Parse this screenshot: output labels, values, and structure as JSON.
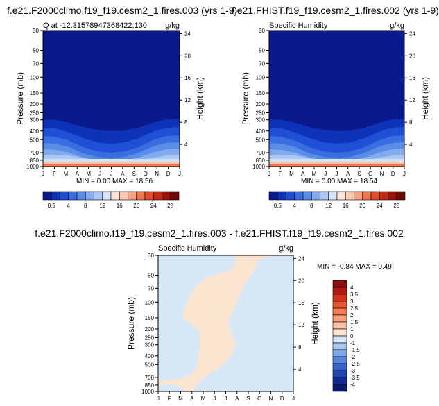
{
  "months": [
    "J",
    "F",
    "M",
    "A",
    "M",
    "J",
    "J",
    "A",
    "S",
    "O",
    "N",
    "D",
    "J"
  ],
  "pressure_ticks": [
    "30",
    "50",
    "70",
    "100",
    "150",
    "200",
    "250",
    "300",
    "400",
    "500",
    "700",
    "850",
    "1000"
  ],
  "pressure_values": [
    30,
    50,
    70,
    100,
    150,
    200,
    250,
    300,
    400,
    500,
    700,
    850,
    1000
  ],
  "height_ticks": [
    "24",
    "20",
    "16",
    "12",
    "8",
    "4"
  ],
  "height_values_km": [
    24,
    20,
    16,
    12,
    8,
    4
  ],
  "ylabel_left": "Pressure (mb)",
  "ylabel_right": "Height (km)",
  "panel1": {
    "title": "f.e21.F2000climo.f19_f19.cesm2_1.fires.003 (yrs 1-9)",
    "subtitle_left": "Q at -12.31578947368422,130",
    "subtitle_right": "g/kg",
    "minmax": "MIN =   0.00 MAX =  18.56"
  },
  "panel2": {
    "title": "f.e21.FHIST.f19_f19.cesm2_1.fires.002 (yrs 1-9)",
    "subtitle_left": "Specific Humidity",
    "subtitle_right": "g/kg",
    "minmax": "MIN =   0.00 MAX =  18.54"
  },
  "panel3": {
    "title": "f.e21.F2000climo.f19_f19.cesm2_1.fires.003 - f.e21.FHIST.f19_f19.cesm2_1.fires.002",
    "subtitle_left": "Specific Humidity",
    "subtitle_right": "g/kg",
    "minmax": "MIN = -0.84 MAX =   0.49"
  },
  "colorbar1": {
    "labels": [
      "0.5",
      "4",
      "8",
      "12",
      "16",
      "20",
      "24",
      "28"
    ],
    "colors": [
      "#0a1a8c",
      "#0f33b8",
      "#1f4fd6",
      "#3a6ee0",
      "#5a8de8",
      "#82aaee",
      "#aac6f3",
      "#d3e3f7",
      "#fbe3d6",
      "#f8c7b0",
      "#f4a184",
      "#ef7756",
      "#e04e2f",
      "#c42a18",
      "#9c1208",
      "#6e0a04"
    ]
  },
  "colorbar3": {
    "labels": [
      "4",
      "3.5",
      "3",
      "2.5",
      "2",
      "1.5",
      "1",
      "0",
      "-1",
      "-1.5",
      "-2",
      "-2.5",
      "-3",
      "-3.5",
      "-4"
    ],
    "colors": [
      "#8a0e0e",
      "#b3170f",
      "#d63118",
      "#ea5530",
      "#f47a52",
      "#f7a07c",
      "#f9c5a6",
      "#fbe5d0",
      "#d6e8f7",
      "#a9c9f0",
      "#7ea8e8",
      "#5686de",
      "#3364d0",
      "#1d44b5",
      "#0f2a94",
      "#0a1a72"
    ]
  },
  "chart_data": [
    {
      "type": "heatmap",
      "title": "f.e21.F2000climo.f19_f19.cesm2_1.fires.003 (yrs 1-9)",
      "variable": "Q at -12.31578947368422,130",
      "units": "g/kg",
      "xlabel": "",
      "ylabel": "Pressure (mb)",
      "ylabel_right": "Height (km)",
      "ylim": [
        1000,
        30
      ],
      "log_scale_y": true,
      "x": [
        "J",
        "F",
        "M",
        "A",
        "M",
        "J",
        "J",
        "A",
        "S",
        "O",
        "N",
        "D",
        "J"
      ],
      "min": 0.0,
      "max": 18.56,
      "moist_layer_top_mb": [
        290,
        290,
        300,
        320,
        380,
        420,
        430,
        420,
        380,
        330,
        300,
        290,
        290
      ]
    },
    {
      "type": "heatmap",
      "title": "f.e21.FHIST.f19_f19.cesm2_1.fires.002 (yrs 1-9)",
      "variable": "Specific Humidity",
      "units": "g/kg",
      "xlabel": "",
      "ylabel": "Pressure (mb)",
      "ylabel_right": "Height (km)",
      "ylim": [
        1000,
        30
      ],
      "log_scale_y": true,
      "x": [
        "J",
        "F",
        "M",
        "A",
        "M",
        "J",
        "J",
        "A",
        "S",
        "O",
        "N",
        "D",
        "J"
      ],
      "min": 0.0,
      "max": 18.54,
      "moist_layer_top_mb": [
        290,
        290,
        300,
        320,
        380,
        420,
        430,
        420,
        380,
        330,
        300,
        290,
        290
      ]
    },
    {
      "type": "heatmap",
      "title": "f.e21.F2000climo.f19_f19.cesm2_1.fires.003 - f.e21.FHIST.f19_f19.cesm2_1.fires.002",
      "variable": "Specific Humidity",
      "units": "g/kg",
      "xlabel": "",
      "ylabel": "Pressure (mb)",
      "ylabel_right": "Height (km)",
      "ylim": [
        1000,
        30
      ],
      "log_scale_y": true,
      "x": [
        "J",
        "F",
        "M",
        "A",
        "M",
        "J",
        "J",
        "A",
        "S",
        "O",
        "N",
        "D",
        "J"
      ],
      "min": -0.84,
      "max": 0.49,
      "levels": [
        -4,
        -3.5,
        -3,
        -2.5,
        -2,
        -1.5,
        -1,
        0,
        1,
        1.5,
        2,
        2.5,
        3,
        3.5,
        4
      ]
    }
  ]
}
